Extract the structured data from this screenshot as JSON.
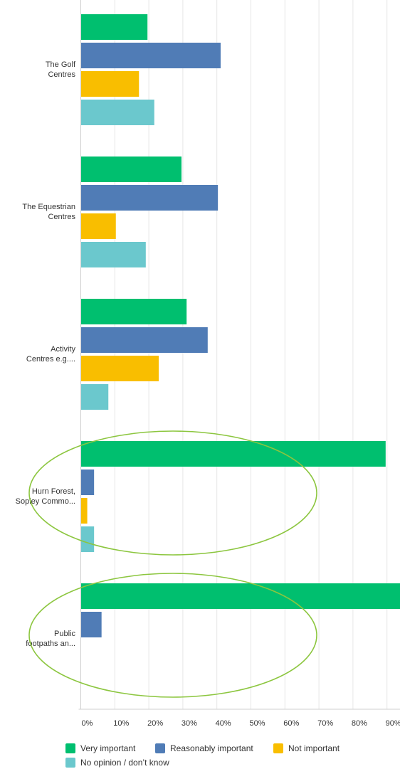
{
  "chart_data": {
    "type": "bar",
    "orientation": "horizontal",
    "categories": [
      [
        "The Golf",
        "Centres"
      ],
      [
        "The Equestrian",
        "Centres"
      ],
      [
        "Activity",
        "Centres e.g...."
      ],
      [
        "Hurn Forest,",
        "Sopley Commo..."
      ],
      [
        "Public",
        "footpaths an..."
      ]
    ],
    "series": [
      {
        "name": "Very important",
        "color": "#00bf6f",
        "values": [
          19.5,
          29.5,
          31,
          89.5,
          95
        ]
      },
      {
        "name": "Reasonably important",
        "color": "#507cb6",
        "values": [
          41,
          40.2,
          37.2,
          3.8,
          6
        ]
      },
      {
        "name": "Not important",
        "color": "#f9be00",
        "values": [
          17,
          10.2,
          22.8,
          1.8,
          0
        ]
      },
      {
        "name": "No opinion / don’t know",
        "color": "#6bc8cd",
        "values": [
          21.5,
          19,
          8,
          3.8,
          0
        ]
      }
    ],
    "x_ticks": [
      "0%",
      "10%",
      "20%",
      "30%",
      "40%",
      "50%",
      "60%",
      "70%",
      "80%",
      "90%"
    ],
    "xlim": [
      0,
      100
    ],
    "grid": true,
    "legend_position": "bottom",
    "highlight_color": "#8cc63f",
    "highlighted_categories": [
      3,
      4
    ]
  }
}
